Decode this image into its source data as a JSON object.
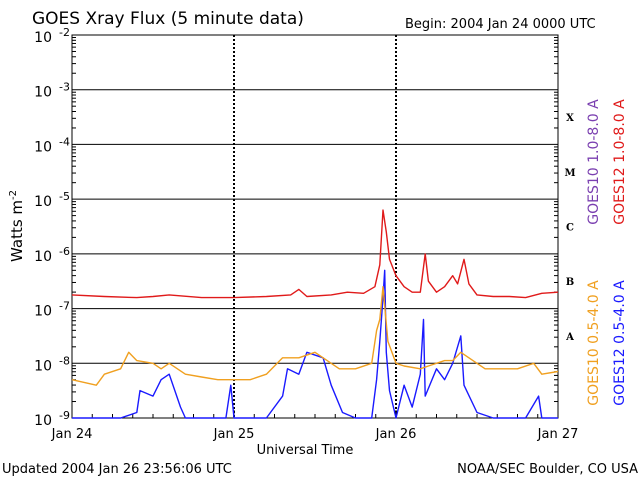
{
  "chart_data": {
    "type": "line",
    "title": "GOES Xray Flux (5 minute data)",
    "begin_label": "Begin:  2004 Jan 24 0000 UTC",
    "xlabel": "Universal Time",
    "ylabel": "Watts m",
    "ylabel_sup": "-2",
    "y_scale": "log",
    "ylim_exp": [
      -9,
      -2
    ],
    "y_ticks": [
      {
        "exp": -2,
        "base": "10",
        "sup": "-2"
      },
      {
        "exp": -3,
        "base": "10",
        "sup": "-3"
      },
      {
        "exp": -4,
        "base": "10",
        "sup": "-4"
      },
      {
        "exp": -5,
        "base": "10",
        "sup": "-5"
      },
      {
        "exp": -6,
        "base": "10",
        "sup": "-6"
      },
      {
        "exp": -7,
        "base": "10",
        "sup": "-7"
      },
      {
        "exp": -8,
        "base": "10",
        "sup": "-8"
      },
      {
        "exp": -9,
        "base": "10",
        "sup": "-9"
      }
    ],
    "x_range_days": [
      0,
      3
    ],
    "x_ticks": [
      {
        "day": 0,
        "label": "Jan 24"
      },
      {
        "day": 1,
        "label": "Jan 25"
      },
      {
        "day": 2,
        "label": "Jan 26"
      },
      {
        "day": 3,
        "label": "Jan 27"
      }
    ],
    "flare_classes": [
      {
        "label": "X",
        "exp": -3.5
      },
      {
        "label": "M",
        "exp": -4.5
      },
      {
        "label": "C",
        "exp": -5.5
      },
      {
        "label": "B",
        "exp": -6.5
      },
      {
        "label": "A",
        "exp": -7.5
      }
    ],
    "legend": [
      {
        "text": "GOES10 1.0-8.0 A",
        "color": "#7a3fb0"
      },
      {
        "text": "GOES12 1.0-8.0 A",
        "color": "#e01a1a"
      },
      {
        "text": "GOES10 0.5-4.0 A",
        "color": "#f0a020"
      },
      {
        "text": "GOES12 0.5-4.0 A",
        "color": "#1a1aff"
      }
    ],
    "series": [
      {
        "name": "GOES12 0.5-4.0 A",
        "color": "#1a1aff",
        "points": [
          [
            0,
            -9
          ],
          [
            0.3,
            -9
          ],
          [
            0.4,
            -8.9
          ],
          [
            0.42,
            -8.5
          ],
          [
            0.5,
            -8.6
          ],
          [
            0.55,
            -8.3
          ],
          [
            0.6,
            -8.2
          ],
          [
            0.67,
            -8.8
          ],
          [
            0.7,
            -9
          ],
          [
            0.95,
            -9
          ],
          [
            0.98,
            -8.4
          ],
          [
            1,
            -9
          ],
          [
            1.2,
            -9
          ],
          [
            1.3,
            -8.6
          ],
          [
            1.33,
            -8.1
          ],
          [
            1.4,
            -8.2
          ],
          [
            1.45,
            -7.8
          ],
          [
            1.55,
            -7.9
          ],
          [
            1.6,
            -8.4
          ],
          [
            1.67,
            -8.9
          ],
          [
            1.75,
            -9
          ],
          [
            1.85,
            -9
          ],
          [
            1.88,
            -8.3
          ],
          [
            1.9,
            -7.6
          ],
          [
            1.92,
            -6.8
          ],
          [
            1.93,
            -6.3
          ],
          [
            1.94,
            -7.8
          ],
          [
            1.96,
            -8.5
          ],
          [
            2,
            -9
          ],
          [
            2.05,
            -8.4
          ],
          [
            2.1,
            -8.8
          ],
          [
            2.15,
            -8.2
          ],
          [
            2.17,
            -7.2
          ],
          [
            2.18,
            -8.6
          ],
          [
            2.25,
            -8.1
          ],
          [
            2.3,
            -8.3
          ],
          [
            2.35,
            -8.0
          ],
          [
            2.4,
            -7.5
          ],
          [
            2.42,
            -8.4
          ],
          [
            2.5,
            -8.9
          ],
          [
            2.6,
            -9
          ],
          [
            2.8,
            -9
          ],
          [
            2.88,
            -8.6
          ],
          [
            2.9,
            -9
          ],
          [
            3,
            -9
          ]
        ]
      },
      {
        "name": "GOES10 0.5-4.0 A",
        "color": "#f0a020",
        "points": [
          [
            0,
            -8.3
          ],
          [
            0.15,
            -8.4
          ],
          [
            0.2,
            -8.2
          ],
          [
            0.3,
            -8.1
          ],
          [
            0.35,
            -7.8
          ],
          [
            0.4,
            -7.95
          ],
          [
            0.5,
            -8.0
          ],
          [
            0.55,
            -8.1
          ],
          [
            0.6,
            -8.0
          ],
          [
            0.7,
            -8.2
          ],
          [
            0.8,
            -8.25
          ],
          [
            0.9,
            -8.3
          ],
          [
            1,
            -8.3
          ],
          [
            1.1,
            -8.3
          ],
          [
            1.2,
            -8.2
          ],
          [
            1.3,
            -7.9
          ],
          [
            1.4,
            -7.9
          ],
          [
            1.5,
            -7.8
          ],
          [
            1.55,
            -7.9
          ],
          [
            1.65,
            -8.1
          ],
          [
            1.75,
            -8.1
          ],
          [
            1.85,
            -8.0
          ],
          [
            1.88,
            -7.4
          ],
          [
            1.9,
            -7.2
          ],
          [
            1.92,
            -6.6
          ],
          [
            1.95,
            -7.6
          ],
          [
            2,
            -8.0
          ],
          [
            2.05,
            -8.05
          ],
          [
            2.15,
            -8.1
          ],
          [
            2.2,
            -8.05
          ],
          [
            2.3,
            -7.95
          ],
          [
            2.35,
            -7.95
          ],
          [
            2.4,
            -7.8
          ],
          [
            2.45,
            -7.9
          ],
          [
            2.55,
            -8.1
          ],
          [
            2.65,
            -8.1
          ],
          [
            2.75,
            -8.1
          ],
          [
            2.85,
            -8.0
          ],
          [
            2.9,
            -8.2
          ],
          [
            3,
            -8.15
          ]
        ]
      },
      {
        "name": "GOES12 1.0-8.0 A",
        "color": "#e01a1a",
        "points": [
          [
            0,
            -6.75
          ],
          [
            0.2,
            -6.78
          ],
          [
            0.4,
            -6.8
          ],
          [
            0.5,
            -6.78
          ],
          [
            0.6,
            -6.75
          ],
          [
            0.8,
            -6.8
          ],
          [
            1,
            -6.8
          ],
          [
            1.2,
            -6.78
          ],
          [
            1.35,
            -6.75
          ],
          [
            1.4,
            -6.65
          ],
          [
            1.45,
            -6.78
          ],
          [
            1.6,
            -6.75
          ],
          [
            1.7,
            -6.7
          ],
          [
            1.8,
            -6.72
          ],
          [
            1.87,
            -6.6
          ],
          [
            1.9,
            -6.2
          ],
          [
            1.92,
            -5.2
          ],
          [
            1.94,
            -5.6
          ],
          [
            1.96,
            -6.1
          ],
          [
            2,
            -6.4
          ],
          [
            2.05,
            -6.6
          ],
          [
            2.1,
            -6.7
          ],
          [
            2.15,
            -6.7
          ],
          [
            2.18,
            -6.0
          ],
          [
            2.2,
            -6.5
          ],
          [
            2.25,
            -6.7
          ],
          [
            2.3,
            -6.6
          ],
          [
            2.35,
            -6.4
          ],
          [
            2.38,
            -6.55
          ],
          [
            2.42,
            -6.1
          ],
          [
            2.45,
            -6.55
          ],
          [
            2.5,
            -6.75
          ],
          [
            2.6,
            -6.78
          ],
          [
            2.7,
            -6.78
          ],
          [
            2.8,
            -6.8
          ],
          [
            2.9,
            -6.72
          ],
          [
            3,
            -6.7
          ]
        ]
      }
    ]
  },
  "footer": {
    "updated": "Updated 2004 Jan 26 23:56:06 UTC",
    "source": "NOAA/SEC Boulder, CO USA"
  }
}
